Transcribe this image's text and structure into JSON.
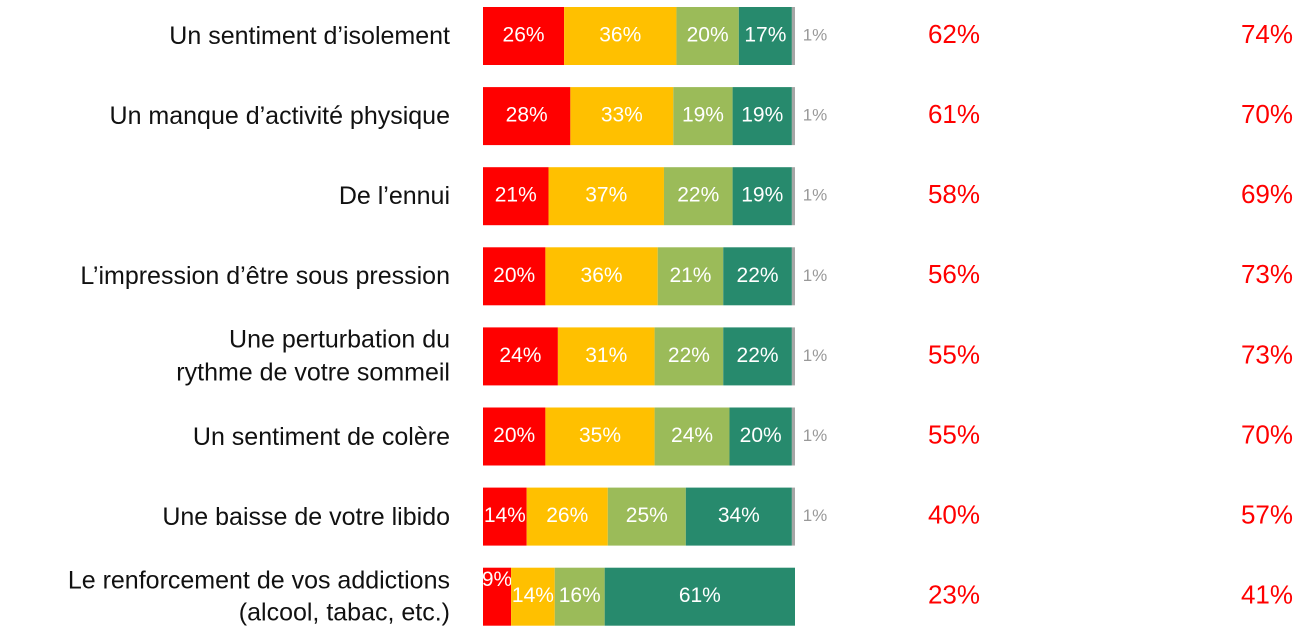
{
  "chart_data": {
    "type": "stacked-bar-horizontal",
    "categories": [
      "Un sentiment d’isolement",
      "Un manque d’activité physique",
      "De l’ennui",
      "L’impression d’être sous pression",
      "Une perturbation du\nrythme de votre sommeil",
      "Un sentiment de colère",
      "Une baisse de votre libido",
      "Le renforcement de vos addictions\n(alcool, tabac, etc.)"
    ],
    "xlim": [
      0,
      100
    ],
    "series": [
      {
        "color": "#ff0000",
        "values": [
          26,
          28,
          21,
          20,
          24,
          20,
          14,
          9
        ],
        "value_labels": [
          "26%",
          "28%",
          "21%",
          "20%",
          "24%",
          "20%",
          "14%",
          "9%"
        ]
      },
      {
        "color": "#ffc000",
        "values": [
          36,
          33,
          37,
          36,
          31,
          35,
          26,
          14
        ],
        "value_labels": [
          "36%",
          "33%",
          "37%",
          "36%",
          "31%",
          "35%",
          "26%",
          "14%"
        ]
      },
      {
        "color": "#9bbb59",
        "values": [
          20,
          19,
          22,
          21,
          22,
          24,
          25,
          16
        ],
        "value_labels": [
          "20%",
          "19%",
          "22%",
          "21%",
          "22%",
          "24%",
          "25%",
          "16%"
        ]
      },
      {
        "color": "#278a6d",
        "values": [
          17,
          19,
          19,
          22,
          22,
          20,
          34,
          61
        ],
        "value_labels": [
          "17%",
          "19%",
          "19%",
          "22%",
          "22%",
          "20%",
          "34%",
          "61%"
        ]
      },
      {
        "color": "#a6a6a6",
        "values": [
          1,
          1,
          1,
          1,
          1,
          1,
          1,
          null
        ],
        "value_labels": [
          "1%",
          "1%",
          "1%",
          "1%",
          "1%",
          "1%",
          "1%",
          null
        ]
      }
    ],
    "columns": [
      {
        "color": "#ff0000",
        "values": [
          62,
          61,
          58,
          56,
          55,
          55,
          40,
          23
        ],
        "value_labels": [
          "62%",
          "61%",
          "58%",
          "56%",
          "55%",
          "55%",
          "40%",
          "23%"
        ]
      },
      {
        "color": "#ff0000",
        "values": [
          74,
          70,
          69,
          73,
          73,
          70,
          57,
          41
        ],
        "value_labels": [
          "74%",
          "70%",
          "69%",
          "73%",
          "73%",
          "70%",
          "57%",
          "41%"
        ]
      }
    ]
  }
}
